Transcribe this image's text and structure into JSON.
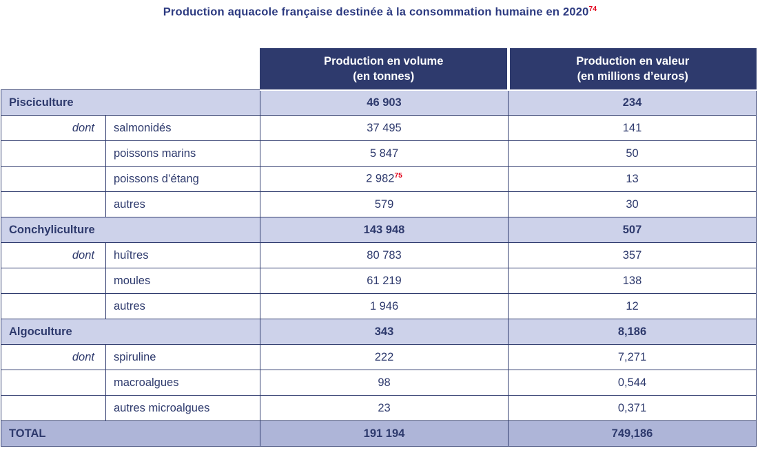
{
  "title": {
    "text": "Production aquacole française destinée à la consommation humaine en 2020",
    "footnote": "74"
  },
  "table": {
    "headers": [
      {
        "line1": "Production en volume",
        "line2": "(en tonnes)"
      },
      {
        "line1": "Production en valeur",
        "line2": "(en millions d’euros)"
      }
    ],
    "rows": [
      {
        "type": "section",
        "label": "Pisciculture",
        "volume": "46 903",
        "value": "234"
      },
      {
        "type": "detail",
        "dont": "dont",
        "label": "salmonidés",
        "volume": "37 495",
        "value": "141"
      },
      {
        "type": "detail",
        "dont": "",
        "label": "poissons marins",
        "volume": "5 847",
        "value": "50"
      },
      {
        "type": "detail",
        "dont": "",
        "label": "poissons d’étang",
        "volume": "2 982",
        "volume_footnote": "75",
        "value": "13"
      },
      {
        "type": "detail",
        "dont": "",
        "label": "autres",
        "volume": "579",
        "value": "30"
      },
      {
        "type": "section",
        "label": "Conchyliculture",
        "volume": "143 948",
        "value": "507"
      },
      {
        "type": "detail",
        "dont": "dont",
        "label": "huîtres",
        "volume": "80 783",
        "value": "357"
      },
      {
        "type": "detail",
        "dont": "",
        "label": "moules",
        "volume": "61 219",
        "value": "138"
      },
      {
        "type": "detail",
        "dont": "",
        "label": "autres",
        "volume": "1 946",
        "value": "12"
      },
      {
        "type": "section",
        "label": "Algoculture",
        "volume": "343",
        "value": "8,186"
      },
      {
        "type": "detail",
        "dont": "dont",
        "label": "spiruline",
        "volume": "222",
        "value": "7,271"
      },
      {
        "type": "detail",
        "dont": "",
        "label": "macroalgues",
        "volume": "98",
        "value": "0,544"
      },
      {
        "type": "detail",
        "dont": "",
        "label": "autres microalgues",
        "volume": "23",
        "value": "0,371"
      },
      {
        "type": "total",
        "label": "TOTAL",
        "volume": "191 194",
        "value": "749,186"
      }
    ]
  },
  "chart_data": {
    "type": "table",
    "title": "Production aquacole française destinée à la consommation humaine en 2020",
    "columns": [
      "Catégorie",
      "Production en volume (en tonnes)",
      "Production en valeur (en millions d’euros)"
    ],
    "rows": [
      [
        "Pisciculture",
        46903,
        234
      ],
      [
        "dont salmonidés",
        37495,
        141
      ],
      [
        "dont poissons marins",
        5847,
        50
      ],
      [
        "dont poissons d’étang",
        2982,
        13
      ],
      [
        "dont autres",
        579,
        30
      ],
      [
        "Conchyliculture",
        143948,
        507
      ],
      [
        "dont huîtres",
        80783,
        357
      ],
      [
        "dont moules",
        61219,
        138
      ],
      [
        "dont autres",
        1946,
        12
      ],
      [
        "Algoculture",
        343,
        8.186
      ],
      [
        "dont spiruline",
        222,
        7.271
      ],
      [
        "dont macroalgues",
        98,
        0.544
      ],
      [
        "dont autres microalgues",
        23,
        0.371
      ],
      [
        "TOTAL",
        191194,
        749.186
      ]
    ]
  },
  "colors": {
    "navy": "#2e3a6d",
    "title_navy": "#2c3a80",
    "section_row_bg": "#cdd2ea",
    "total_row_bg": "#aeb5d8",
    "footnote_red": "#e2001a",
    "header_text": "#ffffff"
  }
}
